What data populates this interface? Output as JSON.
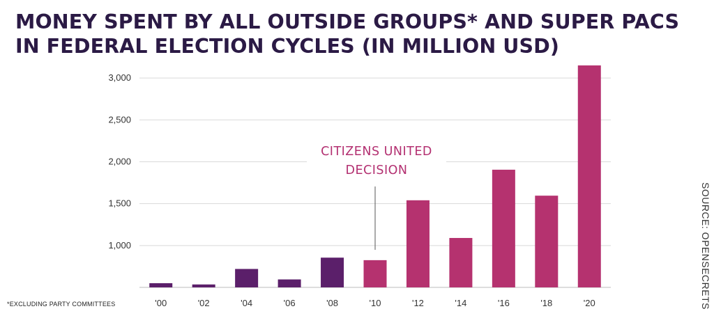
{
  "title": {
    "line1": "MONEY SPENT BY ALL OUTSIDE GROUPS* AND SUPER PACS",
    "line2": "IN FEDERAL ELECTION CYCLES (IN MILLION USD)"
  },
  "footnote": "*EXCLUDING PARTY COMMITTEES",
  "source": "SOURCE: OPENSECRETS",
  "colors": {
    "pre_citizens_united": "#5b1f6a",
    "post_citizens_united": "#b5326f",
    "gridline": "#d9d9d9",
    "axis": "#bbbbbb"
  },
  "chart_data": {
    "type": "bar",
    "title": "MONEY SPENT BY ALL OUTSIDE GROUPS* AND SUPER PACS IN FEDERAL ELECTION CYCLES (IN MILLION USD)",
    "xlabel": "",
    "ylabel": "",
    "categories": [
      "'00",
      "'02",
      "'04",
      "'06",
      "'08",
      "'10",
      "'12",
      "'14",
      "'16",
      "'18",
      "'20"
    ],
    "values": [
      550,
      535,
      720,
      595,
      855,
      825,
      1540,
      1090,
      1905,
      1595,
      3150
    ],
    "bar_colors": [
      "pre",
      "pre",
      "pre",
      "pre",
      "pre",
      "post",
      "post",
      "post",
      "post",
      "post",
      "post"
    ],
    "ylim": [
      500,
      3200
    ],
    "yticks": [
      1000,
      1500,
      2000,
      2500,
      3000
    ],
    "ytick_labels": [
      "1,000",
      "1,500",
      "2,000",
      "2,500",
      "3,000"
    ],
    "grid": true,
    "legend": "none",
    "annotations": [
      {
        "text_line1": "CITIZENS UNITED",
        "text_line2": "DECISION",
        "category": "'10"
      }
    ]
  }
}
